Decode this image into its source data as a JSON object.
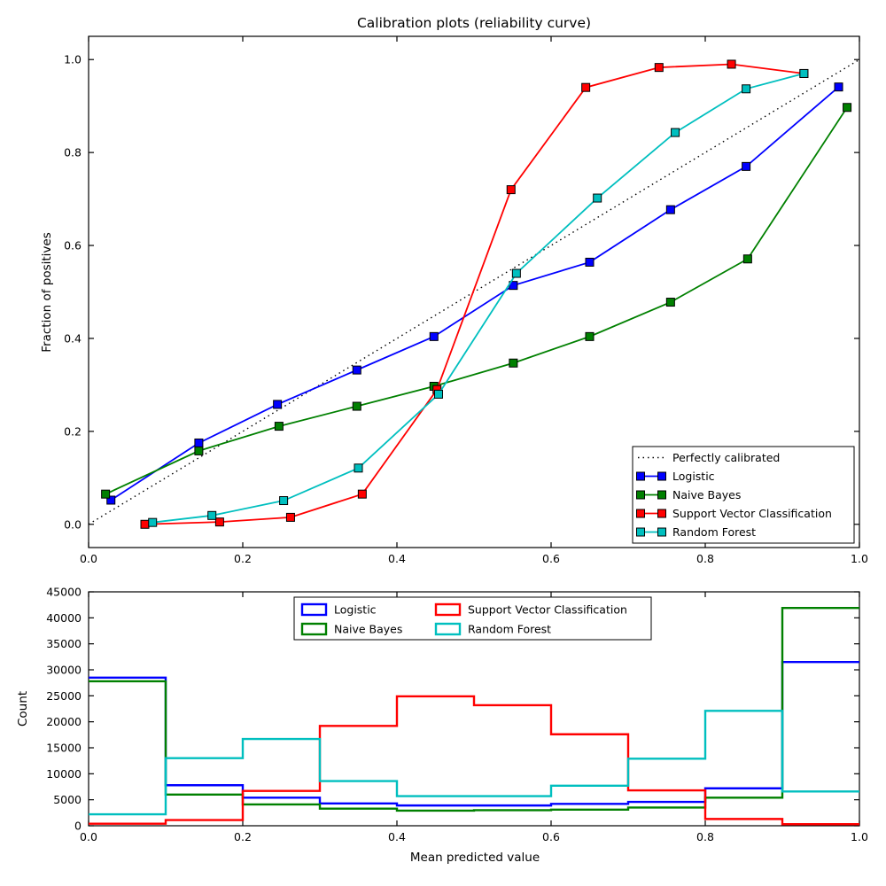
{
  "figure": {
    "background": "#ffffff",
    "axes_color": "#000000"
  },
  "chart_data": [
    {
      "id": "calibration-plot",
      "type": "line",
      "title": "Calibration plots  (reliability curve)",
      "xlabel": "",
      "ylabel": "Fraction of positives",
      "xlim": [
        0.0,
        1.0
      ],
      "ylim": [
        -0.05,
        1.05
      ],
      "xticks": [
        0.0,
        0.2,
        0.4,
        0.6,
        0.8,
        1.0
      ],
      "xtick_labels": [
        "0.0",
        "0.2",
        "0.4",
        "0.6",
        "0.8",
        "1.0"
      ],
      "yticks": [
        0.0,
        0.2,
        0.4,
        0.6,
        0.8,
        1.0
      ],
      "ytick_labels": [
        "0.0",
        "0.2",
        "0.4",
        "0.6",
        "0.8",
        "1.0"
      ],
      "grid": false,
      "legend": {
        "position": "lower right"
      },
      "series": [
        {
          "name": "Perfectly calibrated",
          "color": "#000000",
          "style": "dotted",
          "marker": "none",
          "x": [
            0.0,
            1.0
          ],
          "y": [
            0.0,
            1.0
          ]
        },
        {
          "name": "Logistic",
          "color": "#0000ff",
          "style": "solid",
          "marker": "square",
          "x": [
            0.029,
            0.143,
            0.245,
            0.348,
            0.448,
            0.551,
            0.65,
            0.755,
            0.853,
            0.973
          ],
          "y": [
            0.052,
            0.175,
            0.258,
            0.332,
            0.404,
            0.514,
            0.564,
            0.677,
            0.77,
            0.941
          ]
        },
        {
          "name": "Naive Bayes",
          "color": "#008000",
          "style": "solid",
          "marker": "square",
          "x": [
            0.022,
            0.143,
            0.247,
            0.348,
            0.448,
            0.551,
            0.65,
            0.755,
            0.855,
            0.984
          ],
          "y": [
            0.065,
            0.158,
            0.211,
            0.254,
            0.297,
            0.347,
            0.404,
            0.478,
            0.571,
            0.897
          ]
        },
        {
          "name": "Support Vector Classification",
          "color": "#ff0000",
          "style": "solid",
          "marker": "square",
          "x": [
            0.073,
            0.17,
            0.262,
            0.355,
            0.452,
            0.548,
            0.645,
            0.74,
            0.834,
            0.928
          ],
          "y": [
            0.0,
            0.005,
            0.015,
            0.065,
            0.29,
            0.72,
            0.94,
            0.983,
            0.99,
            0.97
          ]
        },
        {
          "name": "Random Forest",
          "color": "#00bfbf",
          "style": "solid",
          "marker": "square",
          "x": [
            0.083,
            0.16,
            0.253,
            0.35,
            0.454,
            0.555,
            0.66,
            0.761,
            0.853,
            0.928
          ],
          "y": [
            0.004,
            0.019,
            0.051,
            0.121,
            0.28,
            0.54,
            0.702,
            0.843,
            0.937,
            0.97
          ]
        }
      ]
    },
    {
      "id": "histogram-plot",
      "type": "step-histogram",
      "title": "",
      "xlabel": "Mean predicted value",
      "ylabel": "Count",
      "xlim": [
        0.0,
        1.0
      ],
      "ylim": [
        0,
        45000
      ],
      "xticks": [
        0.0,
        0.2,
        0.4,
        0.6,
        0.8,
        1.0
      ],
      "xtick_labels": [
        "0.0",
        "0.2",
        "0.4",
        "0.6",
        "0.8",
        "1.0"
      ],
      "yticks": [
        0,
        5000,
        10000,
        15000,
        20000,
        25000,
        30000,
        35000,
        40000,
        45000
      ],
      "ytick_labels": [
        "0",
        "5000",
        "10000",
        "15000",
        "20000",
        "25000",
        "30000",
        "35000",
        "40000",
        "45000"
      ],
      "grid": false,
      "bin_edges": [
        0.0,
        0.1,
        0.2,
        0.3,
        0.4,
        0.5,
        0.6,
        0.7,
        0.8,
        0.9,
        1.0
      ],
      "legend": {
        "position": "upper center",
        "columns": 2
      },
      "series": [
        {
          "name": "Logistic",
          "color": "#0000ff",
          "counts": [
            28500,
            7800,
            5400,
            4300,
            3900,
            3900,
            4200,
            4600,
            7200,
            31500
          ]
        },
        {
          "name": "Naive Bayes",
          "color": "#008000",
          "counts": [
            27800,
            6000,
            4100,
            3300,
            2900,
            3000,
            3100,
            3500,
            5400,
            41900
          ]
        },
        {
          "name": "Support Vector Classification",
          "color": "#ff0000",
          "counts": [
            400,
            1100,
            6700,
            19200,
            24900,
            23200,
            17600,
            6800,
            1300,
            300
          ]
        },
        {
          "name": "Random Forest",
          "color": "#00bfbf",
          "counts": [
            2200,
            13000,
            16700,
            8600,
            5700,
            5700,
            7700,
            12900,
            22100,
            6600
          ]
        }
      ]
    }
  ]
}
